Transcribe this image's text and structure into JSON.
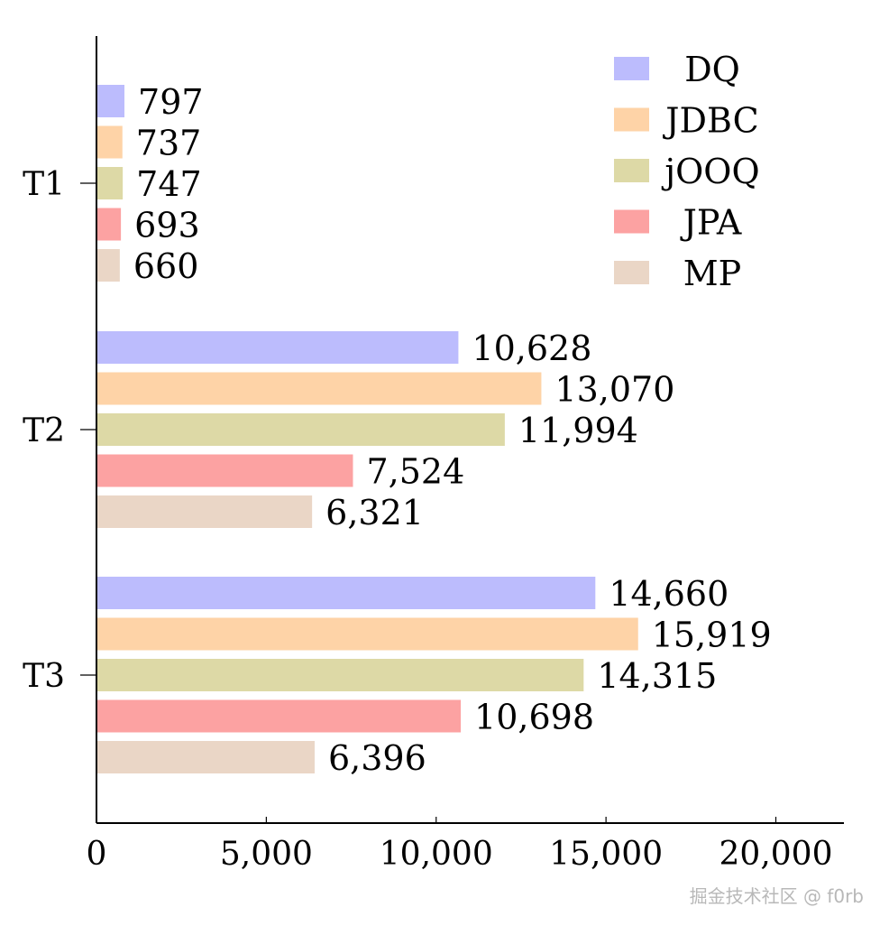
{
  "chart_data": {
    "type": "bar",
    "orientation": "horizontal",
    "categories": [
      "T1",
      "T2",
      "T3"
    ],
    "series": [
      {
        "name": "DQ",
        "color": "#bcbcfd",
        "values": [
          797,
          10628,
          14660
        ],
        "labels": [
          "797",
          "10,628",
          "14,660"
        ]
      },
      {
        "name": "JDBC",
        "color": "#fed3a7",
        "values": [
          737,
          13070,
          15919
        ],
        "labels": [
          "737",
          "13,070",
          "15,919"
        ]
      },
      {
        "name": "jOOQ",
        "color": "#ddd9a6",
        "values": [
          747,
          11994,
          14315
        ],
        "labels": [
          "747",
          "11,994",
          "14,315"
        ]
      },
      {
        "name": "JPA",
        "color": "#fca2a2",
        "values": [
          693,
          7524,
          10698
        ],
        "labels": [
          "693",
          "7,524",
          "10,698"
        ]
      },
      {
        "name": "MP",
        "color": "#ead6c6",
        "values": [
          660,
          6321,
          6396
        ],
        "labels": [
          "660",
          "6,321",
          "6,396"
        ]
      }
    ],
    "xlim": [
      0,
      22000
    ],
    "xticks": [
      0,
      5000,
      10000,
      15000,
      20000
    ],
    "xtick_labels": [
      "0",
      "5,000",
      "10,000",
      "15,000",
      "20,000"
    ],
    "legend_position": "top-right",
    "grid": false
  },
  "watermark": "掘金技术社区 @ f0rb"
}
